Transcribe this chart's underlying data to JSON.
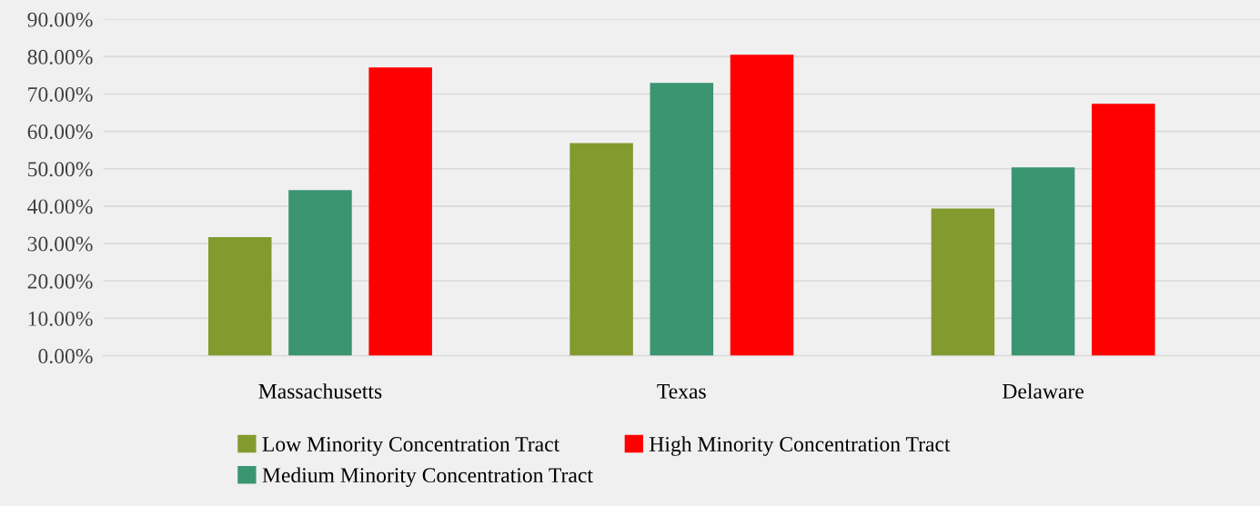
{
  "chart_data": {
    "type": "bar",
    "categories": [
      "Massachusetts",
      "Texas",
      "Delaware"
    ],
    "series": [
      {
        "name": "Low Minority Concentration Tract",
        "color": "#839a2f",
        "values": [
          31.7,
          56.9,
          39.4
        ]
      },
      {
        "name": "Medium Minority Concentration Tract",
        "color": "#3a9570",
        "values": [
          44.3,
          73.0,
          50.4
        ]
      },
      {
        "name": "High Minority Concentration Tract",
        "color": "#ff0000",
        "values": [
          77.1,
          80.5,
          67.4
        ]
      }
    ],
    "ylim": [
      0,
      90
    ],
    "yticks": [
      {
        "value": 0,
        "label": "0.00%"
      },
      {
        "value": 10,
        "label": "10.00%"
      },
      {
        "value": 20,
        "label": "20.00%"
      },
      {
        "value": 30,
        "label": "30.00%"
      },
      {
        "value": 40,
        "label": "40.00%"
      },
      {
        "value": 50,
        "label": "50.00%"
      },
      {
        "value": 60,
        "label": "60.00%"
      },
      {
        "value": 70,
        "label": "70.00%"
      },
      {
        "value": 80,
        "label": "80.00%"
      },
      {
        "value": 90,
        "label": "90.00%"
      }
    ],
    "grid": "y",
    "legend": "bottom"
  }
}
